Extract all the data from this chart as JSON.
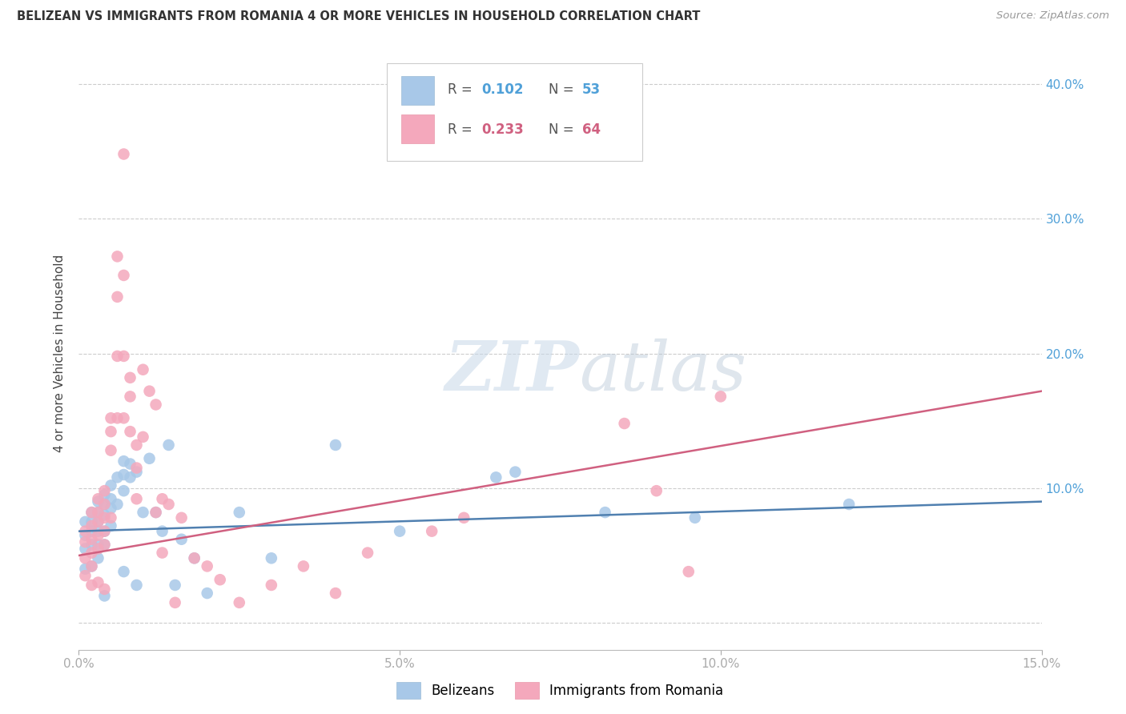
{
  "title": "BELIZEAN VS IMMIGRANTS FROM ROMANIA 4 OR MORE VEHICLES IN HOUSEHOLD CORRELATION CHART",
  "source": "Source: ZipAtlas.com",
  "ylabel_label": "4 or more Vehicles in Household",
  "xlim": [
    0.0,
    0.15
  ],
  "ylim": [
    -0.02,
    0.42
  ],
  "xticks": [
    0.0,
    0.05,
    0.1,
    0.15
  ],
  "xtick_labels": [
    "0.0%",
    "5.0%",
    "10.0%",
    "15.0%"
  ],
  "yticks": [
    0.0,
    0.1,
    0.2,
    0.3,
    0.4
  ],
  "ytick_labels": [
    "",
    "10.0%",
    "20.0%",
    "30.0%",
    "40.0%"
  ],
  "belizean_R": 0.102,
  "belizean_N": 53,
  "romania_R": 0.233,
  "romania_N": 64,
  "belizean_color": "#a8c8e8",
  "romania_color": "#f4a8bc",
  "belizean_line_color": "#5080b0",
  "romania_line_color": "#d06080",
  "legend_label_belizean": "Belizeans",
  "legend_label_romania": "Immigrants from Romania",
  "watermark_zip": "ZIP",
  "watermark_atlas": "atlas",
  "belizean_x": [
    0.001,
    0.001,
    0.001,
    0.001,
    0.002,
    0.002,
    0.002,
    0.002,
    0.002,
    0.003,
    0.003,
    0.003,
    0.003,
    0.003,
    0.003,
    0.004,
    0.004,
    0.004,
    0.004,
    0.004,
    0.004,
    0.005,
    0.005,
    0.005,
    0.005,
    0.006,
    0.006,
    0.007,
    0.007,
    0.007,
    0.007,
    0.008,
    0.008,
    0.009,
    0.009,
    0.01,
    0.011,
    0.012,
    0.013,
    0.014,
    0.015,
    0.016,
    0.018,
    0.02,
    0.025,
    0.03,
    0.04,
    0.05,
    0.065,
    0.068,
    0.082,
    0.096,
    0.12
  ],
  "belizean_y": [
    0.075,
    0.065,
    0.055,
    0.04,
    0.082,
    0.075,
    0.068,
    0.058,
    0.042,
    0.09,
    0.082,
    0.075,
    0.068,
    0.058,
    0.048,
    0.095,
    0.088,
    0.08,
    0.068,
    0.058,
    0.02,
    0.102,
    0.092,
    0.085,
    0.072,
    0.108,
    0.088,
    0.12,
    0.11,
    0.098,
    0.038,
    0.118,
    0.108,
    0.112,
    0.028,
    0.082,
    0.122,
    0.082,
    0.068,
    0.132,
    0.028,
    0.062,
    0.048,
    0.022,
    0.082,
    0.048,
    0.132,
    0.068,
    0.108,
    0.112,
    0.082,
    0.078,
    0.088
  ],
  "romania_x": [
    0.001,
    0.001,
    0.001,
    0.001,
    0.002,
    0.002,
    0.002,
    0.002,
    0.002,
    0.002,
    0.003,
    0.003,
    0.003,
    0.003,
    0.003,
    0.003,
    0.004,
    0.004,
    0.004,
    0.004,
    0.004,
    0.004,
    0.005,
    0.005,
    0.005,
    0.005,
    0.006,
    0.006,
    0.006,
    0.006,
    0.007,
    0.007,
    0.007,
    0.007,
    0.008,
    0.008,
    0.008,
    0.009,
    0.009,
    0.009,
    0.01,
    0.01,
    0.011,
    0.012,
    0.012,
    0.013,
    0.013,
    0.014,
    0.015,
    0.016,
    0.018,
    0.02,
    0.022,
    0.025,
    0.03,
    0.035,
    0.04,
    0.045,
    0.055,
    0.06,
    0.085,
    0.09,
    0.095,
    0.1
  ],
  "romania_y": [
    0.068,
    0.06,
    0.048,
    0.035,
    0.082,
    0.072,
    0.062,
    0.052,
    0.042,
    0.028,
    0.092,
    0.082,
    0.075,
    0.065,
    0.055,
    0.03,
    0.098,
    0.088,
    0.078,
    0.068,
    0.058,
    0.025,
    0.152,
    0.142,
    0.128,
    0.078,
    0.272,
    0.242,
    0.198,
    0.152,
    0.348,
    0.258,
    0.198,
    0.152,
    0.182,
    0.168,
    0.142,
    0.132,
    0.115,
    0.092,
    0.188,
    0.138,
    0.172,
    0.162,
    0.082,
    0.092,
    0.052,
    0.088,
    0.015,
    0.078,
    0.048,
    0.042,
    0.032,
    0.015,
    0.028,
    0.042,
    0.022,
    0.052,
    0.068,
    0.078,
    0.148,
    0.098,
    0.038,
    0.168
  ]
}
